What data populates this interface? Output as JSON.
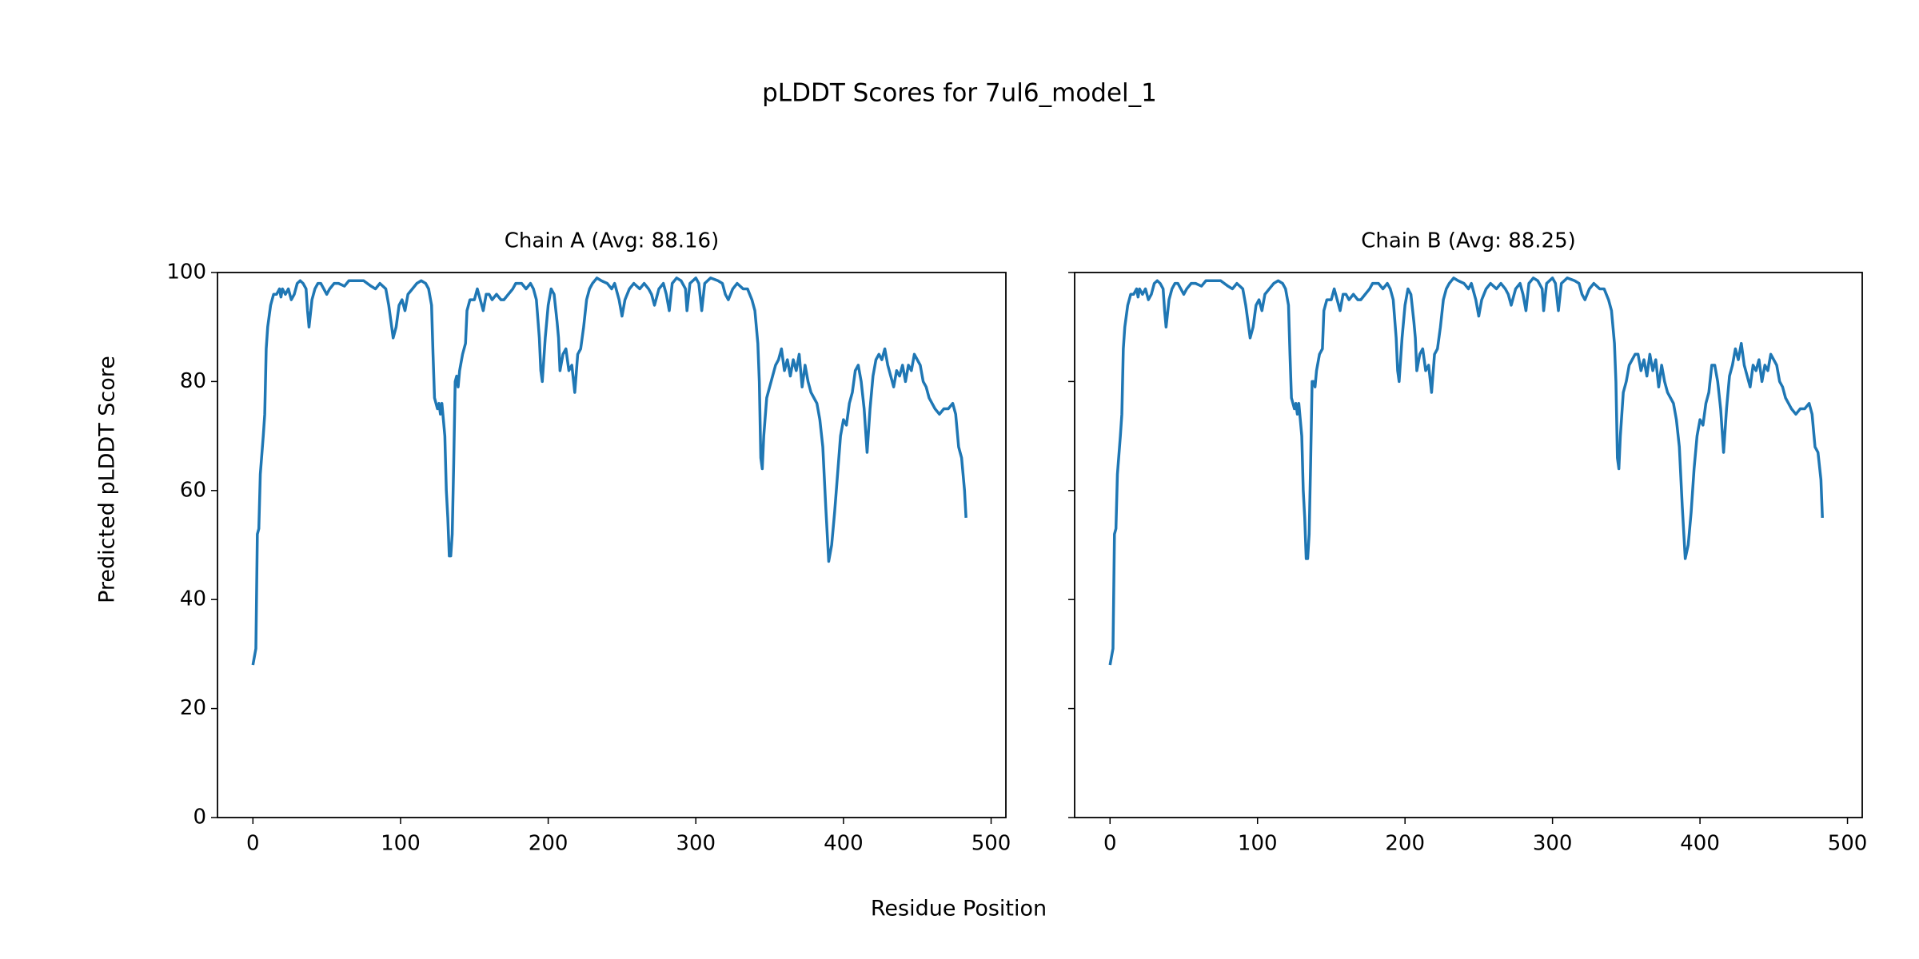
{
  "title": "pLDDT Scores for 7ul6_model_1",
  "xlabel": "Residue Position",
  "ylabel": "Predicted pLDDT Score",
  "chart_data": [
    {
      "type": "line",
      "title": "Chain A (Avg: 88.16)",
      "color": "#1f77b4",
      "xlim": [
        -24,
        510
      ],
      "ylim": [
        0,
        100
      ],
      "xticks": [
        0,
        100,
        200,
        300,
        400,
        500
      ],
      "yticks": [
        0,
        20,
        40,
        60,
        80,
        100
      ],
      "ytick_labels": true,
      "x": [
        0,
        2,
        3,
        4,
        5,
        7,
        8,
        9,
        10,
        12,
        14,
        16,
        18,
        19,
        20,
        22,
        24,
        26,
        28,
        30,
        32,
        34,
        36,
        37,
        38,
        40,
        42,
        44,
        46,
        48,
        50,
        52,
        55,
        58,
        62,
        65,
        70,
        75,
        80,
        83,
        86,
        90,
        92,
        94,
        95,
        97,
        99,
        101,
        103,
        105,
        108,
        111,
        114,
        117,
        119,
        121,
        122,
        123,
        125,
        126,
        127,
        128,
        129,
        130,
        131,
        132,
        133,
        134,
        135,
        136,
        137,
        138,
        139,
        140,
        142,
        144,
        145,
        147,
        150,
        152,
        154,
        156,
        158,
        160,
        162,
        165,
        168,
        170,
        173,
        176,
        178,
        182,
        185,
        188,
        190,
        192,
        194,
        195,
        196,
        198,
        200,
        202,
        204,
        206,
        207,
        208,
        210,
        212,
        214,
        216,
        218,
        220,
        222,
        224,
        226,
        228,
        230,
        233,
        236,
        240,
        243,
        245,
        248,
        250,
        252,
        255,
        258,
        262,
        265,
        268,
        270,
        272,
        275,
        278,
        280,
        282,
        284,
        287,
        290,
        293,
        294,
        296,
        300,
        302,
        304,
        306,
        310,
        315,
        318,
        320,
        322,
        325,
        328,
        332,
        335,
        338,
        340,
        342,
        343,
        344,
        345,
        346,
        348,
        350,
        352,
        354,
        356,
        358,
        360,
        362,
        364,
        366,
        368,
        370,
        372,
        374,
        376,
        378,
        380,
        382,
        384,
        386,
        388,
        390,
        392,
        394,
        396,
        398,
        400,
        402,
        404,
        406,
        408,
        410,
        412,
        414,
        416,
        418,
        420,
        422,
        424,
        426,
        428,
        430,
        432,
        434,
        436,
        438,
        440,
        442,
        444,
        446,
        448,
        450,
        452,
        454,
        456,
        458,
        460,
        462,
        465,
        468,
        471,
        474,
        476,
        478,
        480,
        482,
        483
      ],
      "values": [
        28,
        31,
        52,
        53,
        63,
        70,
        74,
        86,
        90,
        94,
        96,
        96,
        97,
        95.5,
        97,
        96,
        97,
        95,
        96,
        98,
        98.5,
        98,
        97,
        93,
        90,
        95,
        97,
        98,
        98,
        97,
        96,
        97,
        98,
        98,
        97.5,
        98.5,
        98.5,
        98.5,
        97.5,
        97,
        98,
        97,
        94,
        90,
        88,
        90,
        94,
        95,
        93,
        96,
        97,
        98,
        98.5,
        98,
        97,
        94,
        85,
        77,
        75,
        76,
        74,
        76,
        73,
        70,
        60,
        55,
        48,
        48,
        52,
        65,
        80,
        81,
        79,
        82,
        85,
        87,
        93,
        95,
        95,
        97,
        95,
        93,
        96,
        96,
        95,
        96,
        95,
        95,
        96,
        97,
        98,
        98,
        97,
        98,
        97,
        95,
        88,
        82,
        80,
        88,
        94,
        97,
        96,
        91,
        88,
        82,
        85,
        86,
        82,
        83,
        78,
        85,
        86,
        90,
        95,
        97,
        98,
        99,
        98.5,
        98,
        97,
        98,
        95,
        92,
        95,
        97,
        98,
        97,
        98,
        97,
        96,
        94,
        97,
        98,
        96,
        93,
        98,
        99,
        98.5,
        97,
        93,
        98,
        99,
        98,
        93,
        98,
        99,
        98.5,
        98,
        96,
        95,
        97,
        98,
        97,
        97,
        95,
        93,
        87,
        80,
        66,
        64,
        70,
        77,
        79,
        81,
        83,
        84,
        86,
        82,
        84,
        81,
        84,
        82,
        85,
        79,
        83,
        80,
        78,
        77,
        76,
        73,
        68,
        57,
        47,
        50,
        56,
        63,
        70,
        73,
        72,
        76,
        78,
        82,
        83,
        80,
        75,
        67,
        75,
        81,
        84,
        85,
        84,
        86,
        83,
        81,
        79,
        82,
        81,
        83,
        80,
        83,
        82,
        85,
        84,
        83,
        80,
        79,
        77,
        76,
        75,
        74,
        75,
        75,
        76,
        74,
        68,
        66,
        60,
        55
      ]
    },
    {
      "type": "line",
      "title": "Chain B (Avg: 88.25)",
      "color": "#1f77b4",
      "xlim": [
        -24,
        510
      ],
      "ylim": [
        0,
        100
      ],
      "xticks": [
        0,
        100,
        200,
        300,
        400,
        500
      ],
      "yticks": [
        0,
        20,
        40,
        60,
        80,
        100
      ],
      "ytick_labels": false,
      "x": [
        0,
        2,
        3,
        4,
        5,
        7,
        8,
        9,
        10,
        12,
        14,
        16,
        18,
        19,
        20,
        22,
        24,
        26,
        28,
        30,
        32,
        34,
        36,
        37,
        38,
        40,
        42,
        44,
        46,
        48,
        50,
        52,
        55,
        58,
        62,
        65,
        70,
        75,
        80,
        83,
        86,
        90,
        92,
        94,
        95,
        97,
        99,
        101,
        103,
        105,
        108,
        111,
        114,
        117,
        119,
        121,
        122,
        123,
        125,
        126,
        127,
        128,
        129,
        130,
        131,
        132,
        133,
        134,
        135,
        136,
        137,
        138,
        139,
        140,
        142,
        144,
        145,
        147,
        150,
        152,
        154,
        156,
        158,
        160,
        162,
        165,
        168,
        170,
        173,
        176,
        178,
        182,
        185,
        188,
        190,
        192,
        194,
        195,
        196,
        198,
        200,
        202,
        204,
        206,
        207,
        208,
        210,
        212,
        214,
        216,
        218,
        220,
        222,
        224,
        226,
        228,
        230,
        233,
        236,
        240,
        243,
        245,
        248,
        250,
        252,
        255,
        258,
        262,
        265,
        268,
        270,
        272,
        275,
        278,
        280,
        282,
        284,
        287,
        290,
        293,
        294,
        296,
        300,
        302,
        304,
        306,
        310,
        315,
        318,
        320,
        322,
        325,
        328,
        332,
        335,
        338,
        340,
        342,
        343,
        344,
        345,
        346,
        348,
        350,
        352,
        354,
        356,
        358,
        360,
        362,
        364,
        366,
        368,
        370,
        372,
        374,
        376,
        378,
        380,
        382,
        384,
        386,
        388,
        390,
        392,
        394,
        396,
        398,
        400,
        402,
        404,
        406,
        408,
        410,
        412,
        414,
        416,
        418,
        420,
        422,
        424,
        426,
        428,
        430,
        432,
        434,
        436,
        438,
        440,
        442,
        444,
        446,
        448,
        450,
        452,
        454,
        456,
        458,
        460,
        462,
        465,
        468,
        471,
        474,
        476,
        478,
        480,
        482,
        483
      ],
      "values": [
        28,
        31,
        52,
        53,
        63,
        70,
        74,
        86,
        90,
        94,
        96,
        96,
        97,
        95.5,
        97,
        96,
        97,
        95,
        96,
        98,
        98.5,
        98,
        97,
        93,
        90,
        95,
        97,
        98,
        98,
        97,
        96,
        97,
        98,
        98,
        97.5,
        98.5,
        98.5,
        98.5,
        97.5,
        97,
        98,
        97,
        94,
        90,
        88,
        90,
        94,
        95,
        93,
        96,
        97,
        98,
        98.5,
        98,
        97,
        94,
        85,
        77,
        75,
        76,
        74,
        76,
        73,
        70,
        60,
        55,
        47.5,
        47.5,
        52,
        65,
        80,
        80,
        79,
        82,
        85,
        86,
        93,
        95,
        95,
        97,
        95,
        93,
        96,
        96,
        95,
        96,
        95,
        95,
        96,
        97,
        98,
        98,
        97,
        98,
        97,
        95,
        88,
        82,
        80,
        88,
        94,
        97,
        96,
        91,
        88,
        82,
        85,
        86,
        82,
        83,
        78,
        85,
        86,
        90,
        95,
        97,
        98,
        99,
        98.5,
        98,
        97,
        98,
        95,
        92,
        95,
        97,
        98,
        97,
        98,
        97,
        96,
        94,
        97,
        98,
        96,
        93,
        98,
        99,
        98.5,
        97,
        93,
        98,
        99,
        98,
        93,
        98,
        99,
        98.5,
        98,
        96,
        95,
        97,
        98,
        97,
        97,
        95,
        93,
        87,
        80,
        66,
        64,
        70,
        78,
        80,
        83,
        84,
        85,
        85,
        82,
        84,
        81,
        85,
        82,
        84,
        79,
        83,
        80,
        78,
        77,
        76,
        73,
        68,
        57,
        47.5,
        50,
        56,
        64,
        70,
        73,
        72,
        76,
        78,
        83,
        83,
        80,
        75,
        67,
        75,
        81,
        83,
        86,
        84,
        87,
        83,
        81,
        79,
        83,
        82,
        84,
        80,
        83,
        82,
        85,
        84,
        83,
        80,
        79,
        77,
        76,
        75,
        74,
        75,
        75,
        76,
        74,
        68,
        67,
        62,
        55
      ]
    }
  ]
}
